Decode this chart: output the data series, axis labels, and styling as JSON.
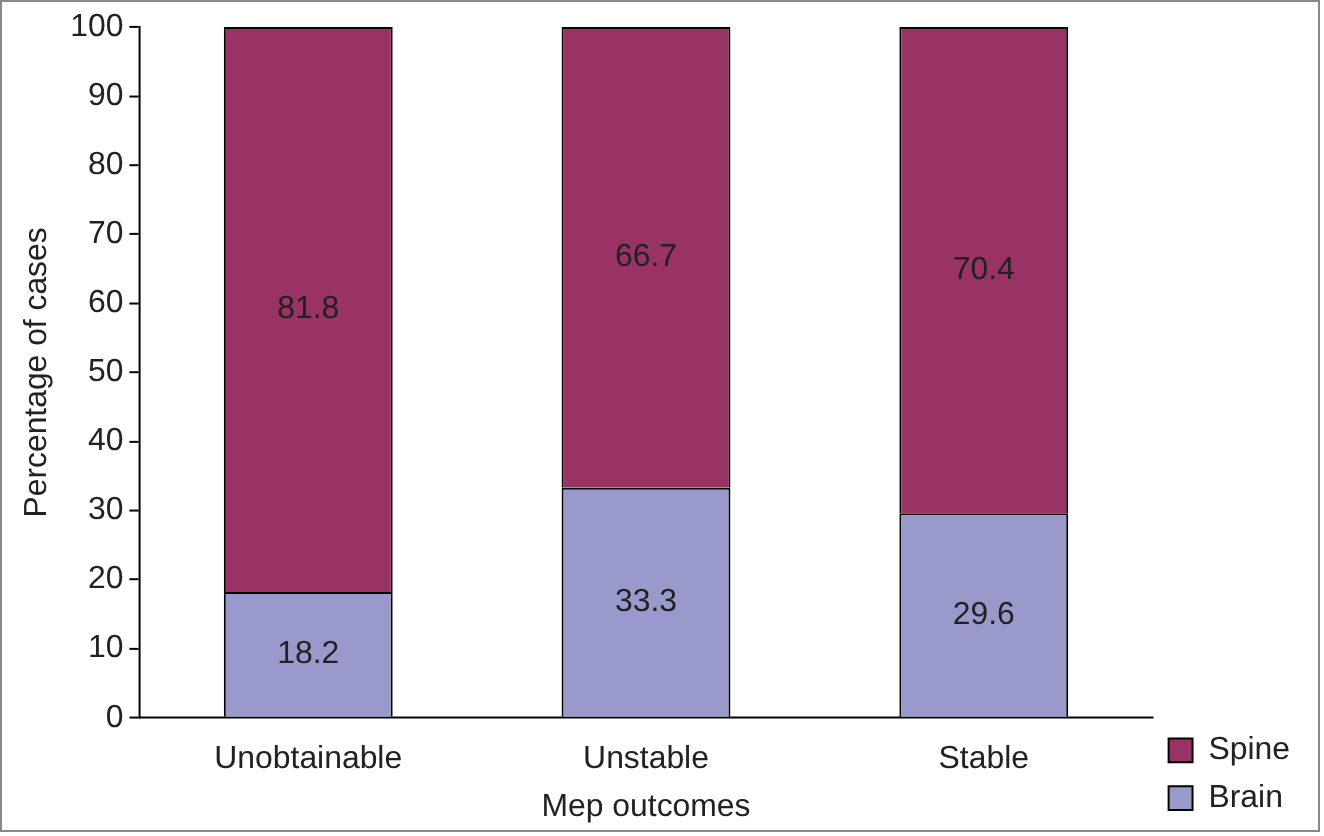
{
  "chart_data": {
    "type": "bar",
    "xlabel": "Mep outcomes",
    "ylabel": "Percentage of cases",
    "categories": [
      "Unobtainable",
      "Unstable",
      "Stable"
    ],
    "series": [
      {
        "name": "Brain",
        "color": "#9999cc",
        "values": [
          18.2,
          33.3,
          29.6
        ]
      },
      {
        "name": "Spine",
        "color": "#993366",
        "values": [
          81.8,
          66.7,
          70.4
        ]
      }
    ],
    "stacked": true,
    "ylim": [
      0,
      100
    ],
    "yticks": [
      0,
      10,
      20,
      30,
      40,
      50,
      60,
      70,
      80,
      90,
      100
    ],
    "grid": false,
    "legend": "right",
    "data_labels": true
  }
}
